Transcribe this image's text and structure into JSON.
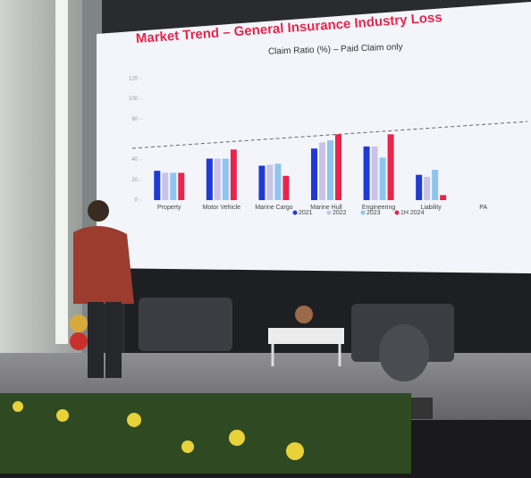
{
  "slide": {
    "title": "Market Trend – General Insurance Industry Loss",
    "subtitle": "Claim Ratio (%) – Paid Claim only",
    "chart": {
      "type": "bar",
      "categories": [
        "Property",
        "Motor Vehicle",
        "Marine Cargo",
        "Marine Hull",
        "Engineering",
        "Liability",
        "PA"
      ],
      "series": [
        {
          "name": "2021",
          "color": "#1f3bd6",
          "values": [
            29,
            41,
            34,
            51,
            53,
            25,
            null
          ]
        },
        {
          "name": "2022",
          "color": "#c9c3ea",
          "values": [
            27,
            41,
            35,
            57,
            53,
            23,
            null
          ]
        },
        {
          "name": "2023",
          "color": "#8ec5ef",
          "values": [
            27,
            41,
            36,
            59,
            42,
            30,
            null
          ]
        },
        {
          "name": "1H 2024",
          "color": "#e8254a",
          "values": [
            27,
            50,
            24,
            65,
            65,
            5,
            null
          ]
        }
      ],
      "ylim": [
        0,
        120
      ],
      "yticks": [
        0,
        20,
        40,
        80,
        100,
        120
      ]
    }
  }
}
